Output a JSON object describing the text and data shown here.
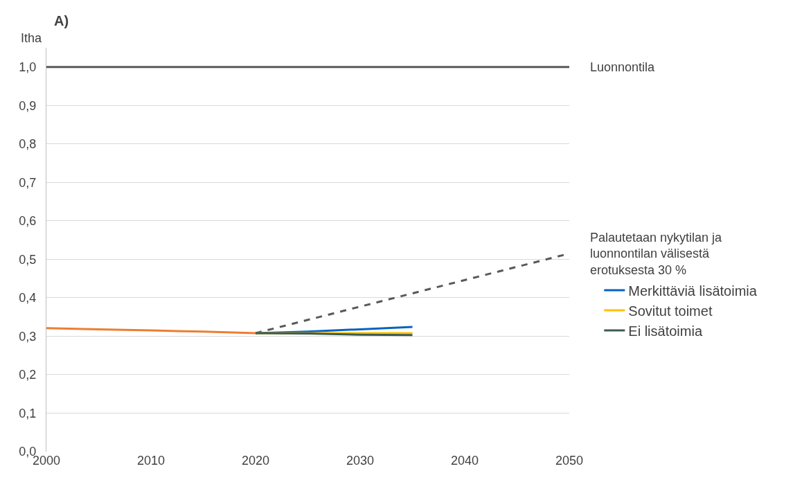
{
  "chart_data": {
    "type": "line",
    "title": "A)",
    "ylabel": "Itha",
    "xlim": [
      2000,
      2050
    ],
    "xticks": [
      2000,
      2010,
      2020,
      2030,
      2040,
      2050
    ],
    "ylim": [
      0,
      1.05
    ],
    "yticks": [
      {
        "value": 0,
        "label": "0,0"
      },
      {
        "value": 0.1,
        "label": "0,1"
      },
      {
        "value": 0.2,
        "label": "0,2"
      },
      {
        "value": 0.3,
        "label": "0,3"
      },
      {
        "value": 0.4,
        "label": "0,4"
      },
      {
        "value": 0.5,
        "label": "0,5"
      },
      {
        "value": 0.6,
        "label": "0,6"
      },
      {
        "value": 0.7,
        "label": "0,7"
      },
      {
        "value": 0.8,
        "label": "0,8"
      },
      {
        "value": 0.9,
        "label": "0,9"
      },
      {
        "value": 1.0,
        "label": "1,0"
      }
    ],
    "grid": "y",
    "legend": "right",
    "series": [
      {
        "name": "Luonnontila",
        "color": "#595959",
        "x": [
          2000,
          2050
        ],
        "values": [
          1.0,
          1.0
        ]
      },
      {
        "name": "Palautetaan nykytilan ja\nluonnontilan välisestä\nerotuksesta 30 %",
        "color": "#595959",
        "line_style": "dashed",
        "x": [
          2020,
          2050
        ],
        "values": [
          0.308,
          0.515
        ]
      },
      {
        "color": "#ed7d31",
        "x": [
          2000,
          2005,
          2010,
          2015,
          2020
        ],
        "values": [
          0.321,
          0.318,
          0.315,
          0.312,
          0.308
        ]
      },
      {
        "name": "Merkittäviä lisätoimia",
        "color": "#0563c1",
        "x": [
          2020,
          2025,
          2030,
          2035
        ],
        "values": [
          0.308,
          0.312,
          0.318,
          0.324
        ]
      },
      {
        "name": "Sovitut toimet",
        "color": "#ffc000",
        "x": [
          2020,
          2035
        ],
        "values": [
          0.308,
          0.308
        ]
      },
      {
        "name": "Ei lisätoimia",
        "color": "#3d5c50",
        "x": [
          2020,
          2025,
          2030,
          2035
        ],
        "values": [
          0.308,
          0.307,
          0.304,
          0.303
        ]
      }
    ]
  }
}
